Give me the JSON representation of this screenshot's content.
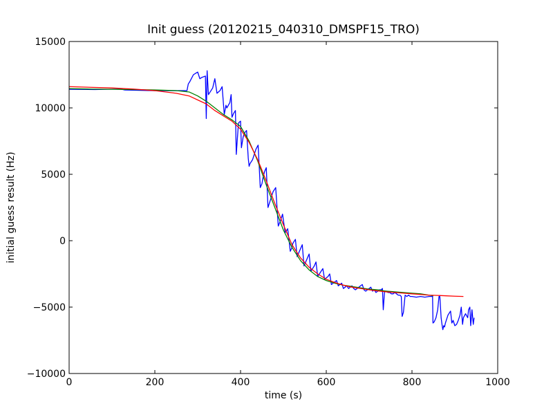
{
  "chart_data": {
    "type": "line",
    "title": "Init guess (20120215_040310_DMSPF15_TRO)",
    "xlabel": "time (s)",
    "ylabel": "initial guess result (Hz)",
    "xlim": [
      0,
      1000
    ],
    "ylim": [
      -10000,
      15000
    ],
    "xticks": [
      0,
      200,
      400,
      600,
      800,
      1000
    ],
    "xtick_labels": [
      "0",
      "200",
      "400",
      "600",
      "800",
      "1000"
    ],
    "yticks": [
      -10000,
      -5000,
      0,
      5000,
      10000,
      15000
    ],
    "ytick_labels": [
      "−10000",
      "−5000",
      "0",
      "5000",
      "10000",
      "15000"
    ],
    "grid": false,
    "series": [
      {
        "color": "#0000ff",
        "x": [
          0,
          60,
          120,
          130,
          200,
          270,
          275,
          278,
          282,
          290,
          295,
          300,
          305,
          310,
          318,
          320,
          322,
          325,
          335,
          340,
          345,
          352,
          357,
          362,
          366,
          368,
          375,
          378,
          380,
          384,
          388,
          390,
          395,
          396,
          400,
          402,
          406,
          409,
          414,
          418,
          420,
          422,
          428,
          432,
          436,
          441,
          446,
          450,
          452,
          456,
          460,
          464,
          468,
          471,
          476,
          482,
          488,
          493,
          498,
          504,
          510,
          516,
          520,
          522,
          528,
          532,
          536,
          540,
          544,
          548,
          552,
          556,
          560,
          564,
          568,
          572,
          576,
          580,
          584,
          588,
          592,
          596,
          600,
          604,
          608,
          612,
          616,
          620,
          624,
          628,
          632,
          636,
          640,
          644,
          648,
          652,
          656,
          660,
          664,
          668,
          672,
          676,
          680,
          684,
          688,
          692,
          696,
          700,
          704,
          708,
          712,
          716,
          720,
          724,
          728,
          731,
          733,
          736,
          740,
          744,
          748,
          752,
          756,
          760,
          764,
          768,
          772,
          775,
          777,
          780,
          784,
          788,
          792,
          796,
          800,
          810,
          820,
          830,
          840,
          848,
          849,
          852,
          856,
          860,
          863,
          865,
          868,
          870,
          872,
          874,
          876,
          878,
          880,
          884,
          888,
          890,
          893,
          896,
          900,
          904,
          908,
          912,
          915,
          918,
          920,
          925,
          930,
          932,
          935,
          937,
          940,
          943,
          945
        ],
        "y": [
          11400,
          11380,
          11420,
          11350,
          11300,
          11300,
          11300,
          11800,
          12000,
          12500,
          12600,
          12700,
          12200,
          12300,
          12400,
          9200,
          12800,
          11000,
          11500,
          12200,
          11100,
          11300,
          11600,
          9500,
          10200,
          10000,
          10400,
          11000,
          9300,
          9600,
          9800,
          6500,
          8800,
          8900,
          9000,
          7000,
          7800,
          8100,
          8300,
          6200,
          5600,
          5800,
          6100,
          6500,
          6900,
          7200,
          4000,
          4300,
          4700,
          5200,
          5500,
          2500,
          2900,
          3200,
          3700,
          4000,
          1100,
          1500,
          2000,
          600,
          900,
          -800,
          -500,
          -200,
          100,
          -1200,
          -900,
          -600,
          -300,
          -1900,
          -1600,
          -1300,
          -1000,
          -2300,
          -2100,
          -1900,
          -1600,
          -2700,
          -2500,
          -2300,
          -2100,
          -2900,
          -2800,
          -2700,
          -2500,
          -3300,
          -3200,
          -3100,
          -3000,
          -3400,
          -3300,
          -3200,
          -3600,
          -3500,
          -3400,
          -3600,
          -3500,
          -3400,
          -3600,
          -3700,
          -3600,
          -3500,
          -3400,
          -3300,
          -3700,
          -3800,
          -3700,
          -3600,
          -3500,
          -3800,
          -3700,
          -3900,
          -3800,
          -3700,
          -3700,
          -3600,
          -5200,
          -3800,
          -3800,
          -3900,
          -3900,
          -4000,
          -4000,
          -3900,
          -4000,
          -4100,
          -4100,
          -4200,
          -5700,
          -5400,
          -4100,
          -4200,
          -4100,
          -4200,
          -4200,
          -4250,
          -4200,
          -4250,
          -4200,
          -4200,
          -6200,
          -6100,
          -5800,
          -5200,
          -4200,
          -4200,
          -5800,
          -6300,
          -6700,
          -6400,
          -6500,
          -6200,
          -6000,
          -5600,
          -5400,
          -5300,
          -6200,
          -6000,
          -6400,
          -6300,
          -6000,
          -5600,
          -5000,
          -6300,
          -5800,
          -5500,
          -5800,
          -5200,
          -5000,
          -6400,
          -5200,
          -6300,
          -5800
        ],
        "label": ""
      },
      {
        "color": "#008000",
        "x": [
          0,
          50,
          100,
          150,
          200,
          250,
          280,
          300,
          320,
          340,
          360,
          380,
          400,
          420,
          440,
          460,
          480,
          500,
          520,
          540,
          560,
          580,
          600,
          620,
          640,
          660,
          680,
          700,
          720,
          740,
          760,
          780,
          800,
          820,
          840,
          850
        ],
        "y": [
          11450,
          11420,
          11400,
          11380,
          11350,
          11300,
          11200,
          10900,
          10500,
          10000,
          9500,
          9100,
          8600,
          7500,
          6000,
          4200,
          2500,
          800,
          -500,
          -1500,
          -2200,
          -2700,
          -3000,
          -3200,
          -3350,
          -3450,
          -3550,
          -3650,
          -3700,
          -3800,
          -3850,
          -3900,
          -3950,
          -4000,
          -4100,
          -4150
        ],
        "label": ""
      },
      {
        "color": "#ff0000",
        "x": [
          0,
          50,
          100,
          150,
          200,
          250,
          280,
          300,
          320,
          340,
          360,
          380,
          400,
          420,
          440,
          460,
          480,
          500,
          520,
          540,
          560,
          580,
          600,
          620,
          640,
          660,
          680,
          700,
          720,
          740,
          760,
          780,
          800,
          820,
          840,
          860,
          880,
          900,
          920
        ],
        "y": [
          11600,
          11550,
          11500,
          11420,
          11300,
          11100,
          10900,
          10600,
          10300,
          9800,
          9400,
          9000,
          8400,
          7400,
          6100,
          4500,
          2800,
          1200,
          -300,
          -1300,
          -2000,
          -2500,
          -2900,
          -3150,
          -3350,
          -3500,
          -3600,
          -3700,
          -3780,
          -3850,
          -3900,
          -3950,
          -4000,
          -4050,
          -4100,
          -4120,
          -4150,
          -4180,
          -4200
        ],
        "label": ""
      }
    ]
  }
}
